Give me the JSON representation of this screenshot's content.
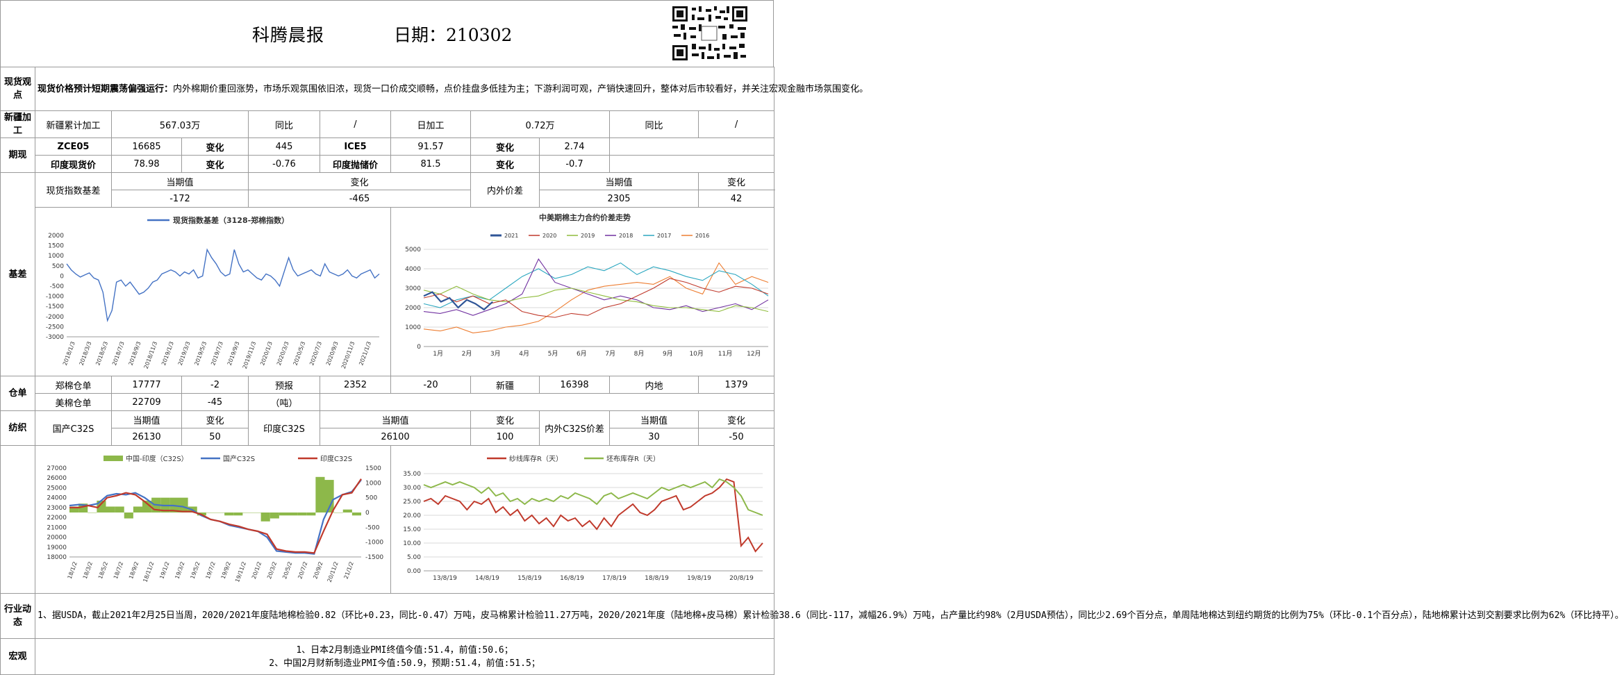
{
  "header": {
    "title": "科腾晨报",
    "date_label": "日期：210302"
  },
  "spot_view": {
    "section": "现货观点",
    "headline": "现货价格预计短期震荡偏强运行：",
    "body": "内外棉期价重回涨势，市场乐观氛围依旧浓，现货一口价成交顺畅，点价挂盘多低挂为主；下游利润可观，产销快速回升，整体对后市较看好，并关注宏观金融市场氛围变化。"
  },
  "xinjiang": {
    "section": "新疆加工",
    "cum_label": "新疆累计加工",
    "cum_value": "567.03万",
    "yoy_label": "同比",
    "yoy_value": "/",
    "daily_label": "日加工",
    "daily_value": "0.72万",
    "yoy2_label": "同比",
    "yoy2_value": "/"
  },
  "futures": {
    "section": "期现",
    "row1": {
      "a_label": "ZCE05",
      "a_value": "16685",
      "a_chg_label": "变化",
      "a_chg": "445",
      "b_label": "ICE5",
      "b_value": "91.57",
      "b_chg_label": "变化",
      "b_chg": "2.74"
    },
    "row2": {
      "a_label": "印度现货价",
      "a_value": "78.98",
      "a_chg_label": "变化",
      "a_chg": "-0.76",
      "b_label": "印度抛储价",
      "b_value": "81.5",
      "b_chg_label": "变化",
      "b_chg": "-0.7"
    }
  },
  "basis": {
    "section": "基差",
    "idx_label": "现货指数基差",
    "cur_label": "当期值",
    "chg_label": "变化",
    "cur": "-172",
    "chg": "-465",
    "diff_label": "内外价差",
    "cur2_label": "当期值",
    "chg2_label": "变化",
    "cur2": "2305",
    "chg2": "42"
  },
  "warehouse": {
    "section": "仓单",
    "zc_label": "郑棉仓单",
    "zc_value": "17777",
    "zc_chg": "-2",
    "forecast_label": "预报",
    "forecast_unit": "（吨）",
    "forecast_value": "2352",
    "forecast_chg": "-20",
    "xj_label": "新疆",
    "xj_value": "16398",
    "nd_label": "内地",
    "nd_value": "1379",
    "us_label": "美棉仓单",
    "us_value": "22709",
    "us_chg": "-45"
  },
  "textile": {
    "section": "纺织",
    "dom_label": "国产C32S",
    "cur_label": "当期值",
    "chg_label": "变化",
    "dom_cur": "26130",
    "dom_chg": "50",
    "ind_label": "印度C32S",
    "cur2_label": "当期值",
    "chg2_label": "变化",
    "ind_cur": "26100",
    "ind_chg": "100",
    "spread_label": "内外C32S价差",
    "cur3_label": "当期值",
    "chg3_label": "变化",
    "spread_cur": "30",
    "spread_chg": "-50"
  },
  "industry": {
    "section": "行业动态",
    "text": "1、据USDA，截止2021年2月25日当周，2020/2021年度陆地棉检验0.82（环比+0.23，同比-0.47）万吨，皮马棉累计检验11.27万吨，2020/2021年度（陆地棉+皮马棉）累计检验38.6（同比-117，减幅26.9%）万吨，占产量比约98%（2月USDA预估），同比少2.69个百分点，单周陆地棉达到纽约期货的比例为75%（环比-0.1个百分点），陆地棉累计达到交割要求比例为62%（环比持平）。"
  },
  "macro": {
    "section": "宏观",
    "line1": "1、日本2月制造业PMI终值今值:51.4，前值:50.6；",
    "line2": "2、中国2月财新制造业PMI今值:50.9，预期:51.4，前值:51.5；"
  },
  "chart_data": [
    {
      "type": "line",
      "title": "",
      "legend": [
        "现货指数基差（3128-郑棉指数）"
      ],
      "x_ticks": [
        "2018/1/3",
        "2018/3/3",
        "2018/5/3",
        "2018/7/3",
        "2018/9/3",
        "2018/11/3",
        "2019/1/3",
        "2019/3/3",
        "2019/5/3",
        "2019/7/3",
        "2019/9/3",
        "2019/11/3",
        "2020/1/3",
        "2020/3/3",
        "2020/5/3",
        "2020/7/3",
        "2020/9/3",
        "2020/11/3",
        "2021/1/3"
      ],
      "y_ticks": [
        "2000",
        "1500",
        "1000",
        "500",
        "0",
        "-500",
        "-1000",
        "-1500",
        "-2000",
        "-2500",
        "-3000"
      ],
      "ylim": [
        -3000,
        2000
      ],
      "series": [
        {
          "name": "现货指数基差（3128-郑棉指数）",
          "color": "#4472c4",
          "values": [
            600,
            300,
            100,
            -50,
            50,
            150,
            -100,
            -200,
            -800,
            -2200,
            -1700,
            -300,
            -200,
            -500,
            -300,
            -600,
            -900,
            -800,
            -600,
            -300,
            -200,
            100,
            200,
            300,
            200,
            0,
            200,
            100,
            300,
            -100,
            0,
            1300,
            900,
            600,
            200,
            0,
            100,
            1300,
            600,
            200,
            300,
            100,
            -100,
            -200,
            100,
            0,
            -200,
            -500,
            200,
            900,
            300,
            0,
            100,
            200,
            300,
            100,
            0,
            600,
            200,
            100,
            0,
            100,
            300,
            0,
            -100,
            100,
            200,
            300,
            -100,
            100
          ]
        }
      ]
    },
    {
      "type": "line",
      "title": "中美期棉主力合约价差走势",
      "legend": [
        "2021",
        "2020",
        "2019",
        "2018",
        "2017",
        "2016"
      ],
      "x_ticks": [
        "1月",
        "2月",
        "3月",
        "4月",
        "5月",
        "6月",
        "7月",
        "8月",
        "9月",
        "10月",
        "11月",
        "12月"
      ],
      "y_ticks": [
        "5000",
        "4000",
        "3000",
        "2000",
        "1000",
        "0"
      ],
      "ylim": [
        0,
        5000
      ],
      "series": [
        {
          "name": "2021",
          "color": "#2f5597",
          "values": [
            2600,
            2800,
            2300,
            2500,
            2000,
            2400,
            2200,
            1900,
            2300
          ]
        },
        {
          "name": "2020",
          "color": "#c0392b",
          "values": [
            2500,
            2700,
            2300,
            2600,
            2200,
            2400,
            1800,
            1600,
            1500,
            1700,
            1600,
            2000,
            2200,
            2600,
            3000,
            3500,
            3300,
            3000,
            2800,
            3100,
            3000,
            2700
          ]
        },
        {
          "name": "2019",
          "color": "#8fbc3c",
          "values": [
            2900,
            2700,
            3100,
            2700,
            2400,
            2300,
            2500,
            2600,
            2900,
            3000,
            2800,
            2600,
            2400,
            2300,
            2100,
            2000,
            2000,
            1900,
            1800,
            2100,
            2000,
            1800
          ]
        },
        {
          "name": "2018",
          "color": "#7030a0",
          "values": [
            1800,
            1700,
            1900,
            1600,
            1900,
            2200,
            2700,
            4500,
            3300,
            3000,
            2700,
            2400,
            2600,
            2400,
            2000,
            1900,
            2100,
            1800,
            2000,
            2200,
            1900,
            2400
          ]
        },
        {
          "name": "2017",
          "color": "#2aa7c0",
          "values": [
            2200,
            2000,
            2400,
            2600,
            2400,
            3000,
            3600,
            4000,
            3500,
            3700,
            4100,
            3900,
            4300,
            3700,
            4100,
            3900,
            3600,
            3400,
            3900,
            3700,
            3200,
            2600
          ]
        },
        {
          "name": "2016",
          "color": "#ed7d31",
          "values": [
            900,
            800,
            1000,
            700,
            800,
            1000,
            1100,
            1300,
            1800,
            2400,
            2900,
            3100,
            3200,
            3300,
            3200,
            3600,
            3000,
            2700,
            4300,
            3200,
            3600,
            3300
          ]
        }
      ]
    },
    {
      "type": "line",
      "title": "",
      "legend": [
        "中国-印度（C32S）",
        "国产C32S",
        "印度C32S"
      ],
      "x_ticks": [
        "18/1/2",
        "18/3/2",
        "18/5/2",
        "18/7/2",
        "18/9/2",
        "18/11/2",
        "19/1/2",
        "19/3/2",
        "19/5/2",
        "19/7/2",
        "19/9/2",
        "19/11/2",
        "20/1/2",
        "20/3/2",
        "20/5/2",
        "20/7/2",
        "20/9/2",
        "20/11/2",
        "21/1/2"
      ],
      "y_ticks": [
        "27000",
        "26000",
        "25000",
        "24000",
        "23000",
        "22000",
        "21000",
        "20000",
        "19000",
        "18000"
      ],
      "y2_ticks": [
        "1500",
        "1000",
        "500",
        "0",
        "-500",
        "-1000",
        "-1500"
      ],
      "ylim": [
        18000,
        27000
      ],
      "y2lim": [
        -1500,
        1500
      ],
      "series": [
        {
          "name": "国产C32S",
          "color": "#4472c4",
          "values": [
            23200,
            23300,
            23200,
            23400,
            24200,
            24400,
            24300,
            24500,
            24000,
            23300,
            23200,
            23200,
            23100,
            22800,
            22200,
            21800,
            21600,
            21200,
            21000,
            20800,
            20600,
            20000,
            18600,
            18500,
            18400,
            18400,
            18300,
            21800,
            23800,
            24300,
            24600,
            25800
          ]
        },
        {
          "name": "印度C32S",
          "color": "#c0392b",
          "values": [
            23000,
            23000,
            23200,
            23000,
            24000,
            24200,
            24500,
            24300,
            23600,
            22800,
            22700,
            22700,
            22600,
            22600,
            22300,
            21800,
            21600,
            21300,
            21100,
            20800,
            20600,
            20300,
            18800,
            18600,
            18500,
            18500,
            18400,
            20600,
            22700,
            24300,
            24500,
            25900
          ]
        },
        {
          "name": "中国-印度（C32S）",
          "color": "#8db84a",
          "values": [
            200,
            300,
            0,
            400,
            200,
            200,
            -200,
            200,
            400,
            500,
            500,
            500,
            500,
            200,
            -100,
            0,
            0,
            -100,
            -100,
            0,
            0,
            -300,
            -200,
            -100,
            -100,
            -100,
            -100,
            1200,
            1100,
            0,
            100,
            -100
          ]
        }
      ]
    },
    {
      "type": "line",
      "title": "",
      "legend": [
        "纱线库存R（天）",
        "坯布库存R（天）"
      ],
      "x_ticks": [
        "13/8/19",
        "14/8/19",
        "15/8/19",
        "16/8/19",
        "17/8/19",
        "18/8/19",
        "19/8/19",
        "20/8/19"
      ],
      "y_ticks": [
        "35.00",
        "30.00",
        "25.00",
        "20.00",
        "15.00",
        "10.00",
        "5.00",
        "0.00"
      ],
      "ylim": [
        0,
        35
      ],
      "series": [
        {
          "name": "纱线库存R（天）",
          "color": "#c0392b",
          "values": [
            25,
            26,
            24,
            27,
            26,
            25,
            22,
            25,
            24,
            26,
            21,
            23,
            20,
            22,
            18,
            20,
            17,
            19,
            16,
            20,
            18,
            19,
            16,
            18,
            15,
            19,
            16,
            20,
            22,
            24,
            21,
            20,
            22,
            25,
            26,
            27,
            22,
            23,
            25,
            27,
            28,
            30,
            33,
            32,
            9,
            12,
            7,
            10
          ]
        },
        {
          "name": "坯布库存R（天）",
          "color": "#8db84a",
          "values": [
            31,
            30,
            31,
            32,
            31,
            32,
            31,
            30,
            28,
            30,
            27,
            28,
            25,
            26,
            24,
            26,
            25,
            26,
            25,
            27,
            26,
            28,
            27,
            26,
            24,
            27,
            28,
            26,
            27,
            28,
            27,
            26,
            28,
            30,
            29,
            30,
            31,
            30,
            31,
            32,
            30,
            33,
            32,
            30,
            27,
            22,
            21,
            20
          ]
        }
      ]
    }
  ]
}
